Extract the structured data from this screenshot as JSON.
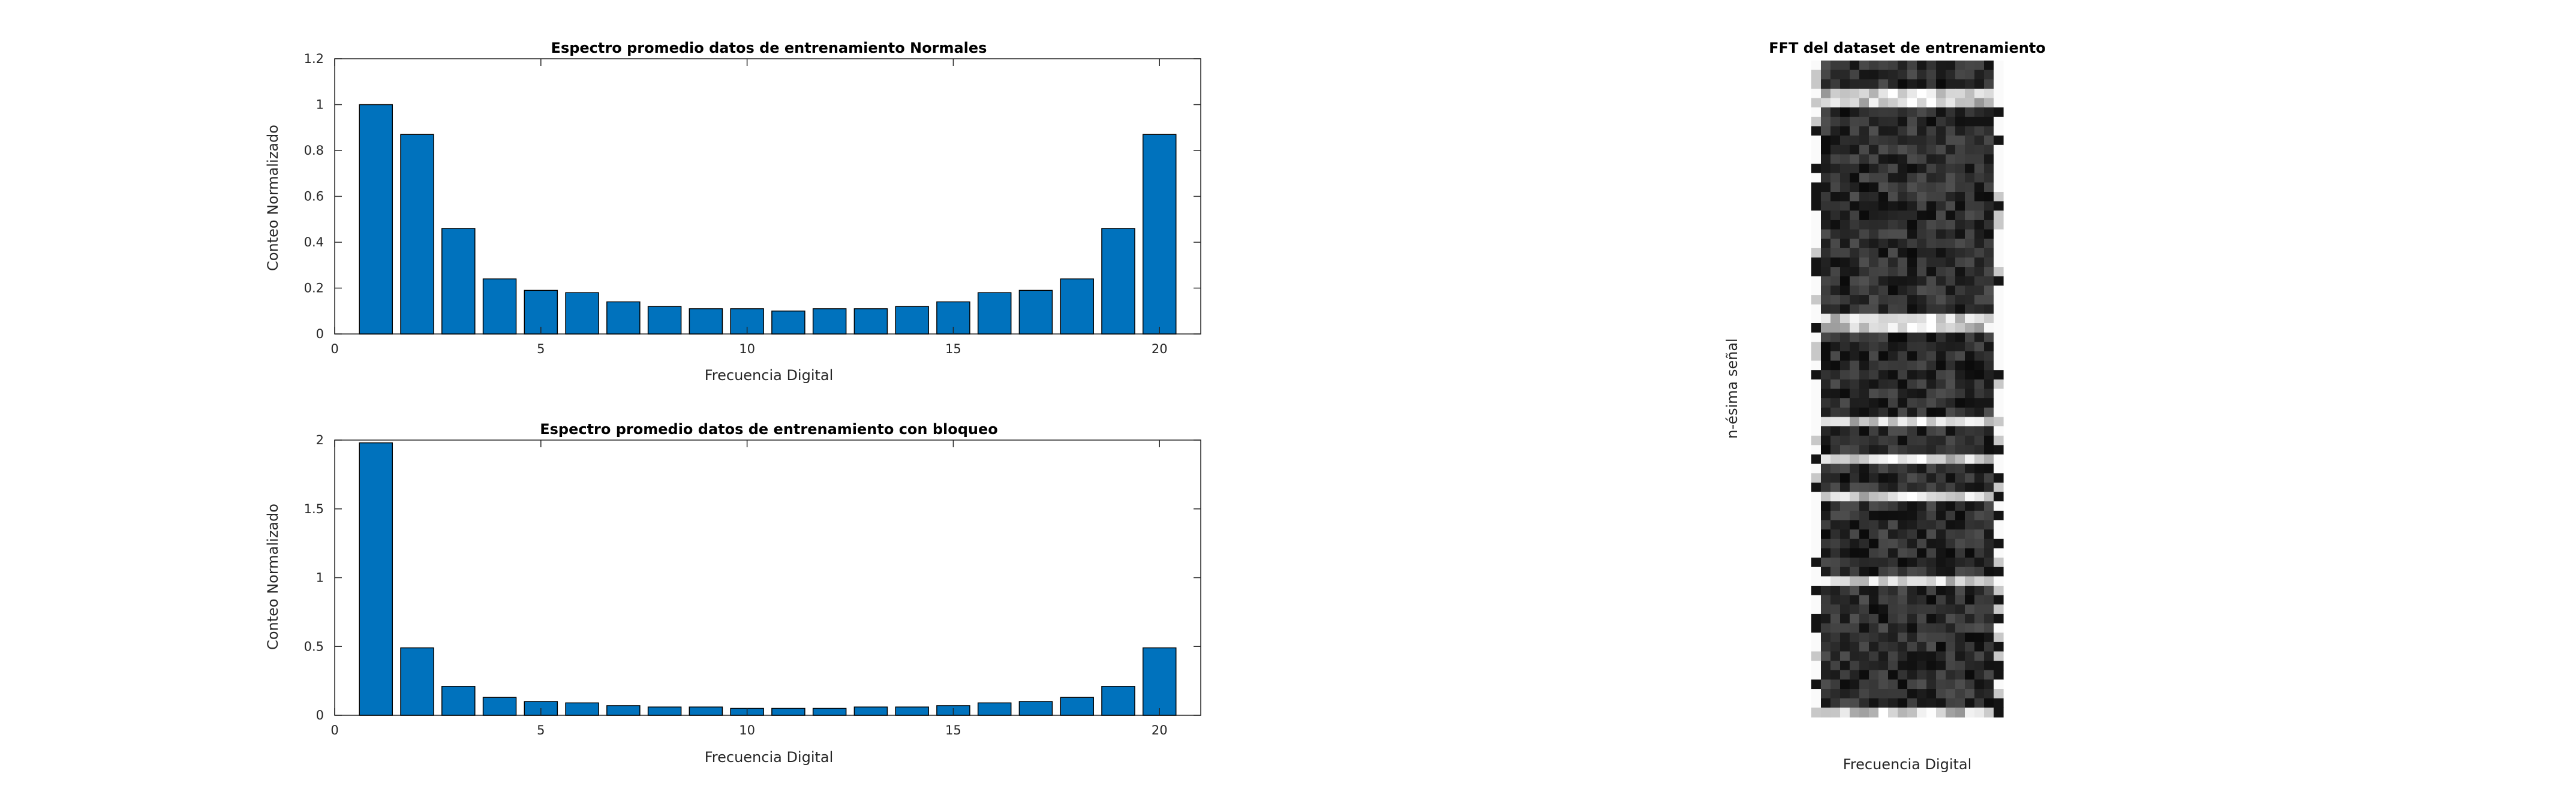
{
  "chart_data": [
    {
      "type": "bar",
      "title": "Espectro promedio datos de entrenamiento Normales",
      "xlabel": "Frecuencia Digital",
      "ylabel": "Conteo Normalizado",
      "xlim": [
        0,
        21
      ],
      "ylim": [
        0,
        1.2
      ],
      "xticks": [
        0,
        5,
        10,
        15,
        20
      ],
      "yticks": [
        0,
        0.2,
        0.4,
        0.6,
        0.8,
        1,
        1.2
      ],
      "x": [
        1,
        2,
        3,
        4,
        5,
        6,
        7,
        8,
        9,
        10,
        11,
        12,
        13,
        14,
        15,
        16,
        17,
        18,
        19,
        20
      ],
      "values": [
        1.0,
        0.87,
        0.46,
        0.24,
        0.19,
        0.18,
        0.14,
        0.12,
        0.11,
        0.11,
        0.1,
        0.11,
        0.11,
        0.12,
        0.14,
        0.18,
        0.19,
        0.24,
        0.46,
        0.87
      ],
      "bar_color": "#0072BD"
    },
    {
      "type": "bar",
      "title": "Espectro promedio datos de entrenamiento con bloqueo",
      "xlabel": "Frecuencia Digital",
      "ylabel": "Conteo Normalizado",
      "xlim": [
        0,
        21
      ],
      "ylim": [
        0,
        2
      ],
      "xticks": [
        0,
        5,
        10,
        15,
        20
      ],
      "yticks": [
        0,
        0.5,
        1,
        1.5,
        2
      ],
      "x": [
        1,
        2,
        3,
        4,
        5,
        6,
        7,
        8,
        9,
        10,
        11,
        12,
        13,
        14,
        15,
        16,
        17,
        18,
        19,
        20
      ],
      "values": [
        1.98,
        0.49,
        0.21,
        0.13,
        0.1,
        0.09,
        0.07,
        0.06,
        0.06,
        0.05,
        0.05,
        0.05,
        0.06,
        0.06,
        0.07,
        0.09,
        0.1,
        0.13,
        0.21,
        0.49
      ],
      "bar_color": "#0072BD"
    },
    {
      "type": "heatmap",
      "title": "FFT del dataset de entrenamiento",
      "xlabel": "Frecuencia Digital",
      "ylabel": "n-ésima señal",
      "colormap": "gray",
      "columns": 20,
      "rows": 70
    }
  ]
}
